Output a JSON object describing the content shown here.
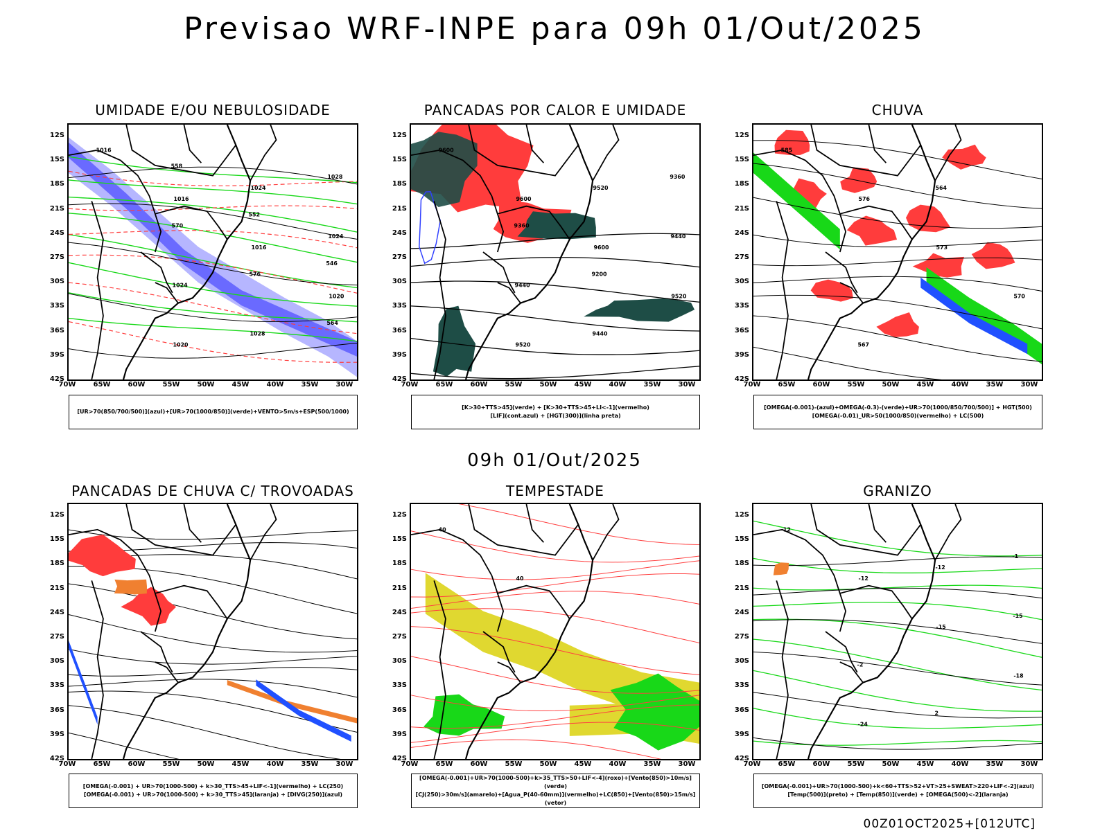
{
  "title": "Previsao WRF-INPE  para 09h 01/Out/2025",
  "mid_title": "09h 01/Out/2025",
  "footer": "00Z01OCT2025+[012UTC]",
  "lat_labels": [
    "12S",
    "15S",
    "18S",
    "21S",
    "24S",
    "27S",
    "30S",
    "33S",
    "36S",
    "39S",
    "42S"
  ],
  "lon_labels": [
    "70W",
    "65W",
    "60W",
    "55W",
    "50W",
    "45W",
    "40W",
    "35W",
    "30W"
  ],
  "colors": {
    "blue": "#6a6aff",
    "lilac": "#b6b6ff",
    "green": "#18d818",
    "red": "#ff3c3c",
    "dark_green": "#1e4d46",
    "yellow": "#e0d830",
    "orange": "#f08030",
    "black": "#000000"
  },
  "panels": [
    {
      "title": "UMIDADE E/OU NEBULOSIDADE",
      "legend": [
        "[UR>70(850/700/500)](azul)+[UR>70(1000/850)](verde)+VENTO>5m/s+ESP(500/1000)"
      ],
      "labels": [
        "1016",
        "1016",
        "1016",
        "1020",
        "1020",
        "1024",
        "1024",
        "1024",
        "1028",
        "1028",
        "570",
        "576",
        "564",
        "558",
        "552",
        "546"
      ]
    },
    {
      "title": "PANCADAS POR CALOR E UMIDADE",
      "legend": [
        "[K>30+TTS>45](verde) + [K>30+TTS>45+LI<-1](vermelho)",
        "[LIF](cont.azul) + [HGT(300)](linha preta)"
      ],
      "labels": [
        "9600",
        "9600",
        "9600",
        "9520",
        "9520",
        "9520",
        "9440",
        "9440",
        "9440",
        "9360",
        "9360",
        "9200"
      ]
    },
    {
      "title": "CHUVA",
      "legend": [
        "[OMEGA(-0.001)-(azul)+OMEGA(-0.3)-(verde)+UR>70(1000/850/700/500)] + HGT(500)",
        "[OMEGA(-0.01)_UR>50(1000/850)(vermelho) + LC(500)"
      ],
      "labels": [
        "585",
        "576",
        "573",
        "570",
        "567",
        "564"
      ]
    },
    {
      "title": "PANCADAS DE CHUVA C/ TROVOADAS",
      "legend": [
        "[OMEGA(-0.001) + UR>70(1000-500) + k>30_TTS>45+LIF<-1](vermelho) + LC(250)",
        "[OMEGA(-0.001) + UR>70(1000-500) + k>30_TTS>45](laranja) + [DIVG(250)](azul)"
      ],
      "labels": []
    },
    {
      "title": "TEMPESTADE",
      "legend": [
        "[OMEGA(-0.001)+UR>70(1000-500)+k>35_TTS>50+LIF<-4](roxo)+[Vento(850)>10m/s](verde)",
        "[CJ(250)>30m/s](amarelo)+[Agua_P(40-60mm)](vermelho)+LC(850)+[Vento(850)>15m/s](vetor)"
      ],
      "labels": [
        "40",
        "40"
      ]
    },
    {
      "title": "GRANIZO",
      "legend": [
        "[OMEGA(-0.001)+UR>70(1000-500)+k<60+TTS>52+VT>25+SWEAT>220+LIF<-2](azul)",
        "[Temp(500)](preto) + [Temp(850)](verde) + [OMEGA(500)<-2](laranja)"
      ],
      "labels": [
        "-12",
        "-12",
        "-15",
        "-18",
        "-24",
        "-12",
        "-15",
        "-2",
        "2",
        "-1"
      ]
    }
  ]
}
